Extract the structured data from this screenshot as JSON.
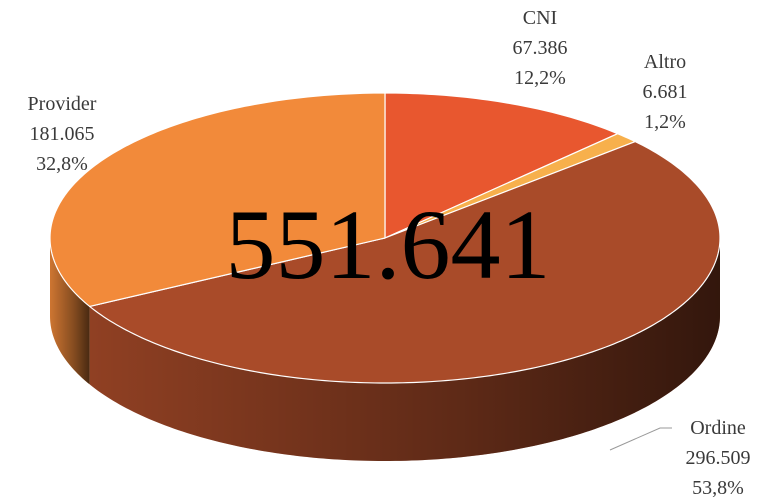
{
  "chart_data": {
    "type": "pie3d",
    "categories": [
      "CNI",
      "Altro",
      "Ordine",
      "Provider"
    ],
    "values": [
      67386,
      6681,
      296509,
      181065
    ],
    "value_labels": [
      "67.386",
      "6.681",
      "296.509",
      "181.065"
    ],
    "percentages": [
      12.2,
      1.2,
      53.8,
      32.8
    ],
    "percentage_labels": [
      "12,2%",
      "1,2%",
      "53,8%",
      "32,8%"
    ],
    "colors": [
      "#e8572f",
      "#f7b04c",
      "#a94b29",
      "#f28a3a"
    ],
    "total": {
      "value": 551641,
      "label": "551.641"
    }
  }
}
